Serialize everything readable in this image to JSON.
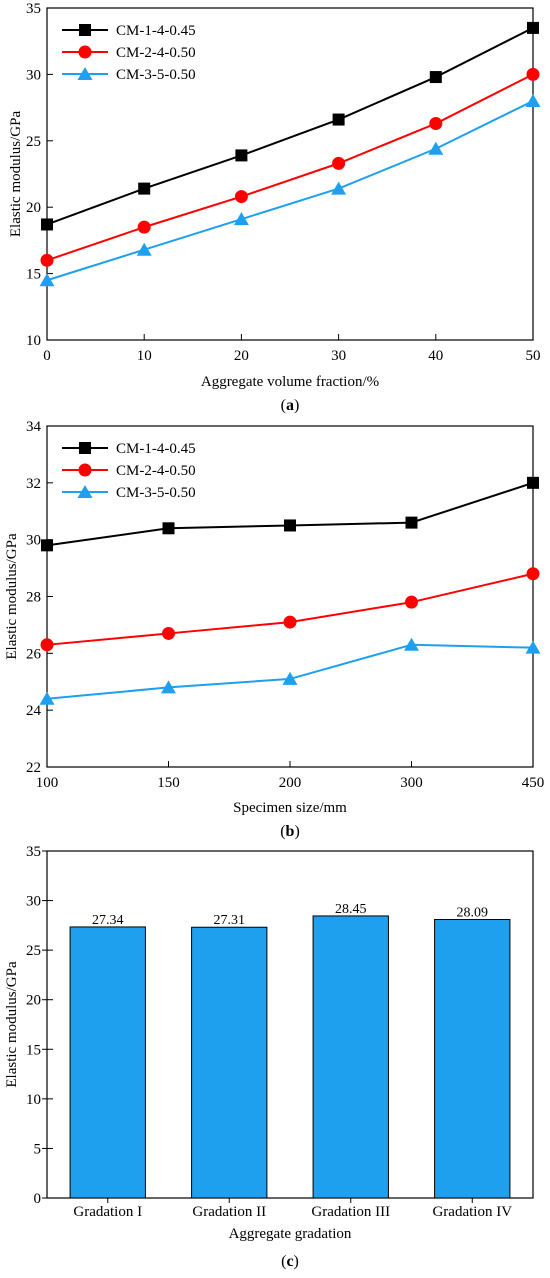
{
  "chart_data": [
    {
      "type": "line",
      "caption_letter": "a",
      "xlabel": "Aggregate volume fraction/%",
      "ylabel": "Elastic modulus/GPa",
      "x": [
        0,
        10,
        20,
        30,
        40,
        50
      ],
      "xlim": [
        0,
        50
      ],
      "ylim": [
        10,
        35
      ],
      "xticks": [
        0,
        10,
        20,
        30,
        40,
        50
      ],
      "yticks": [
        10,
        15,
        20,
        25,
        30,
        35
      ],
      "legend_position": "top-left",
      "grid": false,
      "series": [
        {
          "name": "CM-1-4-0.45",
          "marker": "square",
          "color": "#000000",
          "values": [
            18.7,
            21.4,
            23.9,
            26.6,
            29.8,
            33.5
          ]
        },
        {
          "name": "CM-2-4-0.50",
          "marker": "circle",
          "color": "#ff0000",
          "values": [
            16.0,
            18.5,
            20.8,
            23.3,
            26.3,
            30.0
          ]
        },
        {
          "name": "CM-3-5-0.50",
          "marker": "triangle",
          "color": "#1ea0ee",
          "values": [
            14.5,
            16.8,
            19.1,
            21.4,
            24.4,
            28.0
          ]
        }
      ]
    },
    {
      "type": "line",
      "caption_letter": "b",
      "xlabel": "Specimen size/mm",
      "ylabel": "Elastic modulus/GPa",
      "categories": [
        "100",
        "150",
        "200",
        "300",
        "450"
      ],
      "ylim": [
        22,
        34
      ],
      "yticks": [
        22,
        24,
        26,
        28,
        30,
        32,
        34
      ],
      "legend_position": "top-left",
      "grid": false,
      "series": [
        {
          "name": "CM-1-4-0.45",
          "marker": "square",
          "color": "#000000",
          "values": [
            29.8,
            30.4,
            30.5,
            30.6,
            32.0
          ]
        },
        {
          "name": "CM-2-4-0.50",
          "marker": "circle",
          "color": "#ff0000",
          "values": [
            26.3,
            26.7,
            27.1,
            27.8,
            28.8
          ]
        },
        {
          "name": "CM-3-5-0.50",
          "marker": "triangle",
          "color": "#1ea0ee",
          "values": [
            24.4,
            24.8,
            25.1,
            26.3,
            26.2
          ]
        }
      ]
    },
    {
      "type": "bar",
      "caption_letter": "c",
      "xlabel": "Aggregate gradation",
      "ylabel": "Elastic modulus/GPa",
      "categories": [
        "Gradation I",
        "Gradation II",
        "Gradation III",
        "Gradation IV"
      ],
      "values": [
        27.34,
        27.31,
        28.45,
        28.09
      ],
      "value_labels": [
        "27.34",
        "27.31",
        "28.45",
        "28.09"
      ],
      "ylim": [
        0,
        35
      ],
      "yticks": [
        0,
        5,
        10,
        15,
        20,
        25,
        30,
        35
      ],
      "bar_color": "#1ea0ee",
      "grid": false
    }
  ]
}
